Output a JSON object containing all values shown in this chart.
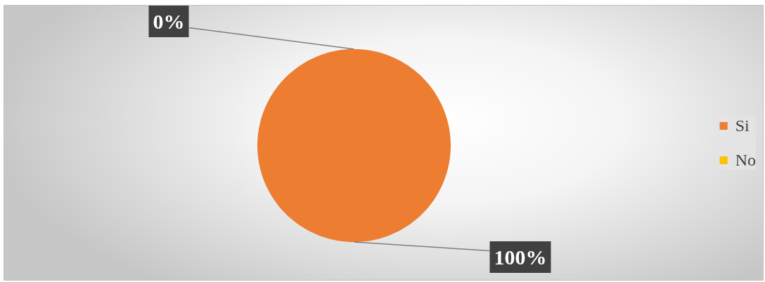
{
  "chart_data": {
    "type": "pie",
    "categories": [
      "Si",
      "No"
    ],
    "values": [
      100,
      0
    ],
    "colors": [
      "#ed7d31",
      "#ffc000"
    ],
    "value_labels": [
      "100%",
      "0%"
    ],
    "legend": "right"
  }
}
